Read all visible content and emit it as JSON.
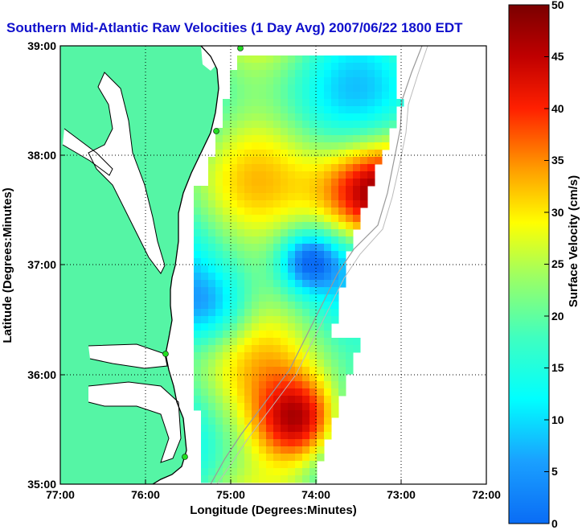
{
  "title": "Southern Mid-Atlantic Raw Velocities (1 Day Avg) 2007/06/22 1800 EDT",
  "map": {
    "xlabel": "Longitude (Degrees:Minutes)",
    "ylabel": "Latitude (Degrees:Minutes)",
    "lon_ticks": [
      "77:00",
      "76:00",
      "75:00",
      "74:00",
      "73:00",
      "72:00"
    ],
    "lat_ticks": [
      "39:00",
      "38:00",
      "37:00",
      "36:00",
      "35:00"
    ],
    "lon_range": [
      -77.0,
      -72.0
    ],
    "lat_range": [
      35.0,
      39.0
    ],
    "grid": "dotted",
    "colors": {
      "land": "#55f5a5",
      "water": "#ffffff",
      "coastline": "#000000",
      "station_marker": "#22dd22"
    }
  },
  "colorbar": {
    "label": "Surface Velocity (cm/s)",
    "ticks": [
      "0",
      "5",
      "10",
      "15",
      "20",
      "25",
      "30",
      "35",
      "40",
      "45",
      "50"
    ],
    "range": [
      0,
      50
    ],
    "colormap": "jet"
  }
}
